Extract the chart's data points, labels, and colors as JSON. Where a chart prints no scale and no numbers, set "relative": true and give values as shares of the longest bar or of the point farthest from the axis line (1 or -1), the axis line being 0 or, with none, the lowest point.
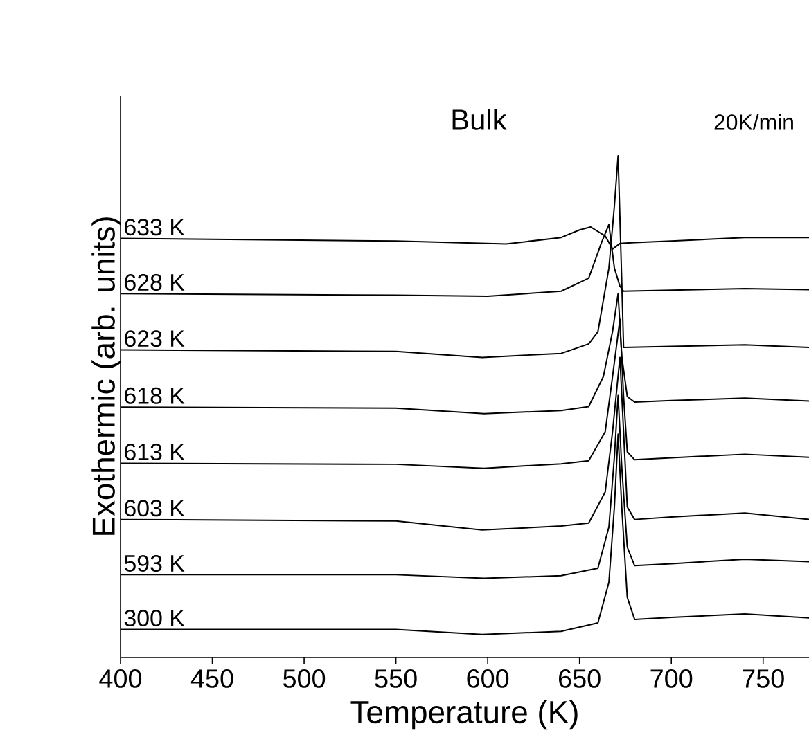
{
  "chart_data": {
    "type": "line",
    "relative": true,
    "xlabel": "Temperature (K)",
    "ylabel": "Exothermic  (arb. units)",
    "annotations": [
      "Bulk",
      "20K/min"
    ],
    "xlim": [
      400,
      775
    ],
    "xticks": [
      400,
      450,
      500,
      550,
      600,
      650,
      700,
      750
    ],
    "grid": false,
    "marker": "none",
    "line_style": "solid",
    "series": [
      {
        "name": "300 K",
        "color": "#000000",
        "x": [
          400,
          550,
          597,
          640,
          660,
          666,
          669,
          671,
          673,
          676,
          680,
          700,
          740,
          775
        ],
        "values": [
          0.056,
          0.056,
          0.046,
          0.052,
          0.069,
          0.15,
          0.3,
          0.445,
          0.3,
          0.12,
          0.076,
          0.08,
          0.087,
          0.079
        ]
      },
      {
        "name": "593 K",
        "color": "#000000",
        "x": [
          400,
          550,
          598,
          640,
          660,
          666,
          669,
          671,
          673,
          676,
          680,
          700,
          740,
          775
        ],
        "values": [
          0.165,
          0.165,
          0.158,
          0.163,
          0.178,
          0.26,
          0.4,
          0.522,
          0.38,
          0.22,
          0.183,
          0.187,
          0.196,
          0.191
        ]
      },
      {
        "name": "603 K",
        "color": "#000000",
        "x": [
          400,
          550,
          597,
          640,
          655,
          664,
          668,
          672,
          674,
          676,
          680,
          700,
          740,
          775
        ],
        "values": [
          0.275,
          0.272,
          0.254,
          0.262,
          0.268,
          0.33,
          0.45,
          0.598,
          0.45,
          0.3,
          0.275,
          0.28,
          0.288,
          0.275
        ]
      },
      {
        "name": "613 K",
        "color": "#000000",
        "x": [
          400,
          550,
          598,
          640,
          655,
          664,
          668,
          672,
          674,
          676,
          680,
          700,
          740,
          775
        ],
        "values": [
          0.387,
          0.385,
          0.377,
          0.386,
          0.392,
          0.45,
          0.56,
          0.674,
          0.52,
          0.41,
          0.394,
          0.398,
          0.405,
          0.399
        ]
      },
      {
        "name": "618 K",
        "color": "#000000",
        "x": [
          400,
          550,
          598,
          640,
          655,
          663,
          668,
          671,
          673,
          676,
          680,
          700,
          740,
          775
        ],
        "values": [
          0.499,
          0.497,
          0.486,
          0.492,
          0.5,
          0.56,
          0.65,
          0.725,
          0.6,
          0.52,
          0.509,
          0.512,
          0.517,
          0.511
        ]
      },
      {
        "name": "623 K",
        "color": "#000000",
        "x": [
          400,
          550,
          597,
          640,
          655,
          660,
          666,
          669,
          671,
          673,
          674,
          700,
          740,
          775
        ],
        "values": [
          0.613,
          0.61,
          0.598,
          0.606,
          0.625,
          0.649,
          0.776,
          0.9,
          1.0,
          0.75,
          0.618,
          0.62,
          0.623,
          0.618
        ]
      },
      {
        "name": "628 K",
        "color": "#000000",
        "x": [
          400,
          550,
          600,
          640,
          655,
          662,
          666,
          669,
          672,
          674,
          700,
          740,
          775
        ],
        "values": [
          0.725,
          0.722,
          0.72,
          0.73,
          0.756,
          0.827,
          0.863,
          0.776,
          0.74,
          0.73,
          0.732,
          0.735,
          0.733
        ]
      },
      {
        "name": "633 K",
        "color": "#000000",
        "x": [
          400,
          550,
          610,
          640,
          650,
          656,
          664,
          668,
          672,
          680,
          700,
          740,
          775
        ],
        "values": [
          0.835,
          0.83,
          0.824,
          0.837,
          0.852,
          0.858,
          0.84,
          0.814,
          0.825,
          0.827,
          0.83,
          0.837,
          0.837
        ]
      }
    ]
  }
}
